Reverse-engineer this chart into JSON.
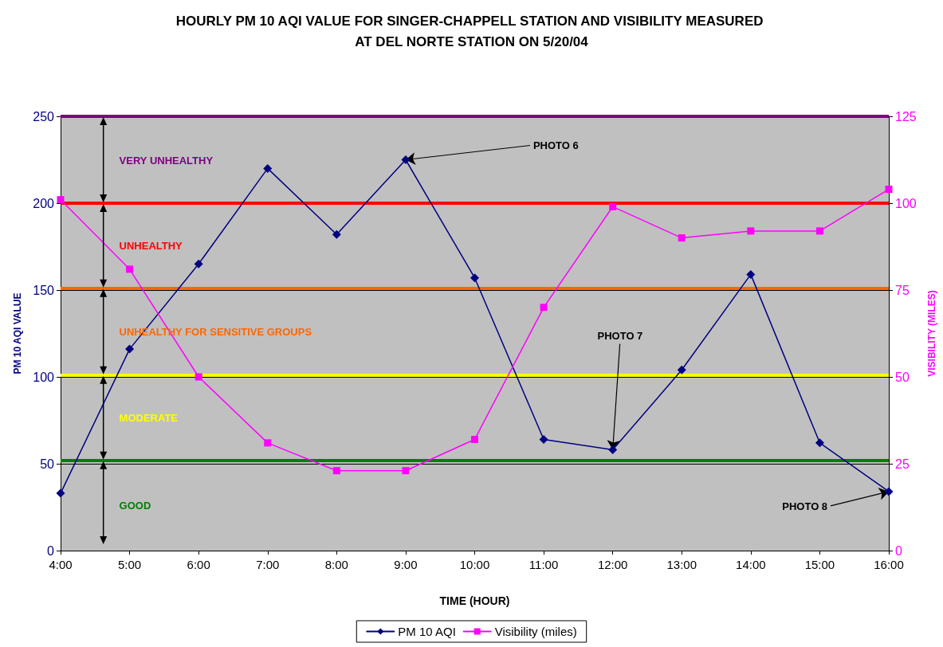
{
  "chart_data": {
    "type": "line",
    "title": "HOURLY PM 10 AQI VALUE FOR SINGER-CHAPPELL STATION AND VISIBILITY MEASURED AT DEL NORTE STATION ON 5/20/04",
    "xlabel": "TIME (HOUR)",
    "ylabel": "PM 10 AQI VALUE",
    "y2label": "VISIBILITY (MILES)",
    "categories": [
      "4:00",
      "5:00",
      "6:00",
      "7:00",
      "8:00",
      "9:00",
      "10:00",
      "11:00",
      "12:00",
      "13:00",
      "14:00",
      "15:00",
      "16:00"
    ],
    "series": [
      {
        "name": "PM 10 AQI",
        "color": "#000080",
        "marker": "diamond",
        "values": [
          33,
          116,
          165,
          220,
          182,
          225,
          157,
          64,
          58,
          104,
          159,
          62,
          34
        ]
      },
      {
        "name": "Visibility (miles)",
        "color": "#ff00ff",
        "marker": "square",
        "axis": "y2",
        "values": [
          101,
          81,
          50,
          31,
          23,
          23,
          32,
          70,
          99,
          90,
          92,
          92,
          104
        ]
      }
    ],
    "ylim": [
      0,
      250
    ],
    "yticks": [
      0,
      50,
      100,
      150,
      200,
      250
    ],
    "y2lim": [
      0,
      125
    ],
    "y2ticks": [
      0,
      25,
      50,
      75,
      100,
      125
    ],
    "ref_lines": [
      {
        "axis": "y",
        "value": 250,
        "label": "VERY UNHEALTHY",
        "color": "#800080"
      },
      {
        "axis": "y",
        "value": 200,
        "label": "UNHEALTHY",
        "color": "#ff0000"
      },
      {
        "axis": "y",
        "value": 151,
        "label": "UNHEALTHY FOR SENSITIVE GROUPS",
        "color": "#ff6600"
      },
      {
        "axis": "y",
        "value": 101,
        "label": "MODERATE",
        "color": "#ffff00"
      },
      {
        "axis": "y",
        "value": 52,
        "label": "GOOD",
        "color": "#008000"
      }
    ],
    "annotations": [
      {
        "text": "PHOTO 6",
        "x": "9:00",
        "y": 225
      },
      {
        "text": "PHOTO 7",
        "x": "12:00",
        "y": 58
      },
      {
        "text": "PHOTO 8",
        "x": "16:00",
        "y": 34
      }
    ],
    "grid": "y",
    "legend": "bottom",
    "line_style": "solid"
  }
}
